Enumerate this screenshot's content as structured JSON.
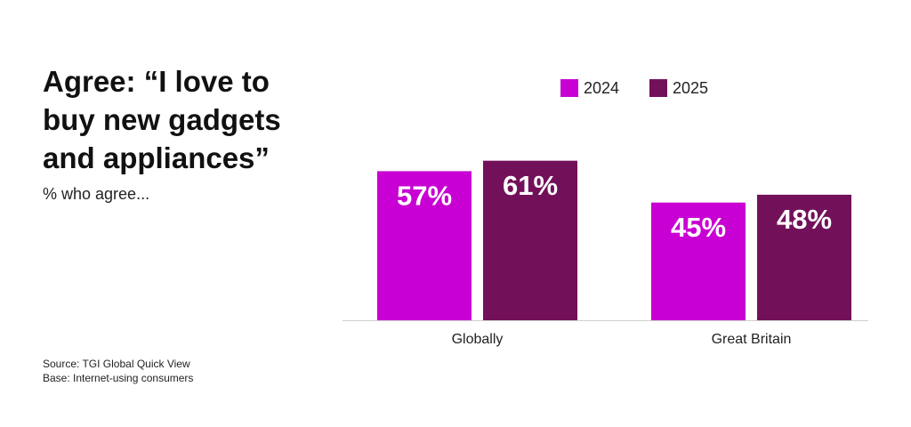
{
  "chart_data": {
    "type": "bar",
    "title": "Agree: “I love to buy new gadgets and appliances”",
    "subtitle": "% who agree...",
    "notes": [
      "Source: TGI Global Quick View",
      "Base: Internet-using consumers"
    ],
    "categories": [
      "Globally",
      "Great Britain"
    ],
    "series": [
      {
        "name": "2024",
        "color": "#c800d3",
        "values": [
          57,
          45
        ],
        "value_labels": [
          "57%",
          "45%"
        ]
      },
      {
        "name": "2025",
        "color": "#72115a",
        "values": [
          61,
          48
        ],
        "value_labels": [
          "61%",
          "48%"
        ]
      }
    ]
  }
}
